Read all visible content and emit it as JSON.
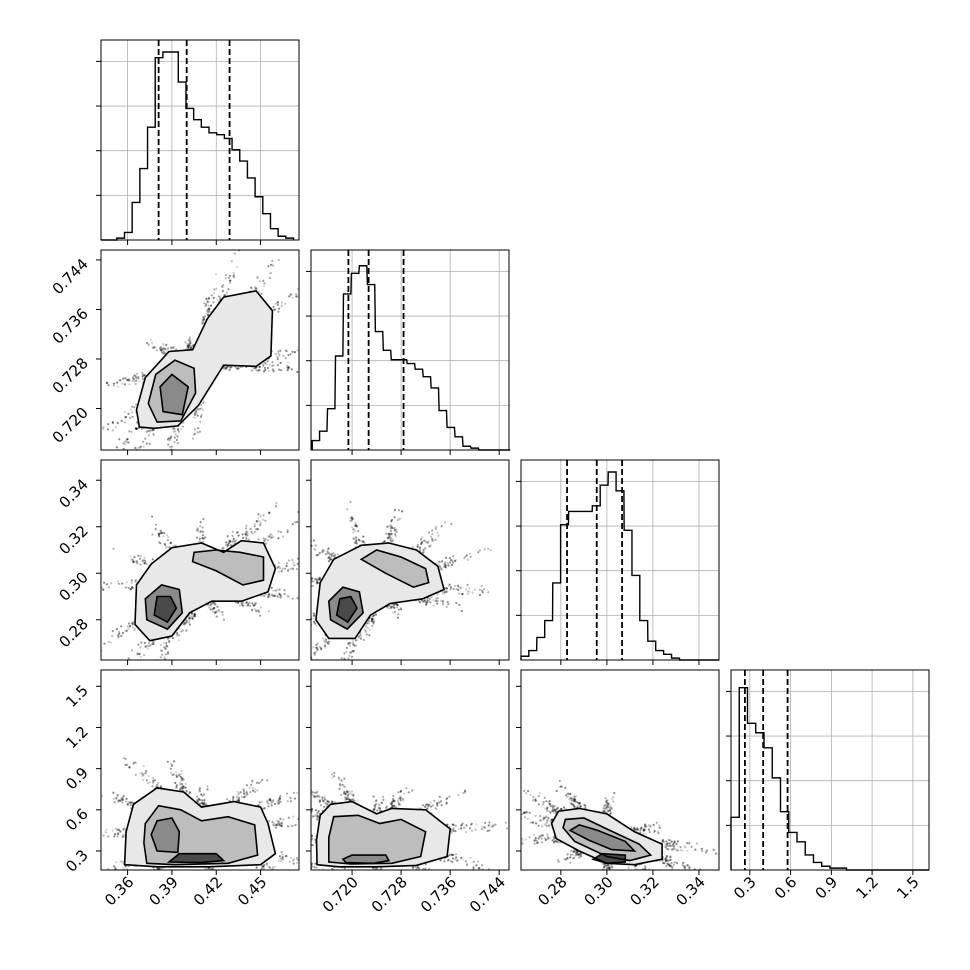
{
  "chart_data": {
    "type": "corner",
    "params": [
      {
        "ticks": [
          0.36,
          0.39,
          0.42,
          0.45
        ],
        "tick_labels": [
          "0.36",
          "0.39",
          "0.42",
          "0.45"
        ],
        "range": [
          0.342,
          0.476
        ],
        "quantiles": [
          0.381,
          0.4,
          0.429
        ],
        "hist_x": [
          0.3449,
          0.3501,
          0.3553,
          0.3605,
          0.3657,
          0.3709,
          0.3761,
          0.3813,
          0.3865,
          0.3917,
          0.3969,
          0.4021,
          0.4073,
          0.4125,
          0.4177,
          0.4229,
          0.4281,
          0.4333,
          0.4385,
          0.4437,
          0.4489,
          0.4541,
          0.4593,
          0.4645,
          0.4697
        ],
        "hist_y": [
          0.0,
          0.0,
          0.01,
          0.04,
          0.2,
          0.38,
          0.6,
          0.97,
          1.0,
          1.0,
          0.84,
          0.7,
          0.64,
          0.6,
          0.57,
          0.56,
          0.54,
          0.48,
          0.42,
          0.33,
          0.23,
          0.14,
          0.06,
          0.02,
          0.01
        ]
      },
      {
        "ticks": [
          0.72,
          0.728,
          0.736,
          0.744
        ],
        "tick_labels": [
          "0.720",
          "0.728",
          "0.736",
          "0.744"
        ],
        "range": [
          0.7133,
          0.7456
        ],
        "quantiles": [
          0.7194,
          0.7227,
          0.7284
        ],
        "hist_x": [
          0.7141,
          0.7153,
          0.7166,
          0.7179,
          0.7192,
          0.7205,
          0.7218,
          0.7231,
          0.7244,
          0.7257,
          0.727,
          0.7283,
          0.7296,
          0.7309,
          0.7322,
          0.7335,
          0.7348,
          0.7361,
          0.7374,
          0.7387,
          0.74,
          0.7413,
          0.7426,
          0.7439,
          0.7452
        ],
        "hist_y": [
          0.05,
          0.1,
          0.22,
          0.5,
          0.83,
          0.94,
          0.98,
          0.88,
          0.63,
          0.53,
          0.48,
          0.48,
          0.46,
          0.43,
          0.39,
          0.33,
          0.21,
          0.12,
          0.07,
          0.02,
          0.01,
          0.0,
          0.0,
          0.0,
          0.0
        ]
      },
      {
        "ticks": [
          0.28,
          0.3,
          0.32,
          0.34
        ],
        "tick_labels": [
          "0.28",
          "0.30",
          "0.32",
          "0.34"
        ],
        "range": [
          0.2627,
          0.3487
        ],
        "quantiles": [
          0.2827,
          0.2956,
          0.3066
        ],
        "hist_x": [
          0.2644,
          0.2678,
          0.2713,
          0.2747,
          0.2782,
          0.2816,
          0.2851,
          0.2885,
          0.2919,
          0.2954,
          0.2988,
          0.3023,
          0.3057,
          0.3092,
          0.3126,
          0.316,
          0.3195,
          0.3229,
          0.3264,
          0.3298,
          0.3333,
          0.3367,
          0.3401,
          0.3436,
          0.347
        ],
        "hist_y": [
          0.02,
          0.05,
          0.12,
          0.21,
          0.41,
          0.72,
          0.79,
          0.79,
          0.79,
          0.82,
          0.93,
          1.0,
          0.9,
          0.69,
          0.45,
          0.21,
          0.1,
          0.05,
          0.03,
          0.01,
          0.0,
          0.0,
          0.0,
          0.0,
          0.0
        ]
      },
      {
        "ticks": [
          0.3,
          0.6,
          0.9,
          1.2,
          1.5
        ],
        "tick_labels": [
          "0.3",
          "0.6",
          "0.9",
          "1.2",
          "1.5"
        ],
        "range": [
          0.1614,
          1.6188
        ],
        "quantiles": [
          0.2637,
          0.3981,
          0.5779
        ],
        "hist_x": [
          0.1917,
          0.2524,
          0.3131,
          0.3739,
          0.4346,
          0.4953,
          0.5561,
          0.6168,
          0.6775,
          0.7382,
          0.799,
          0.8597,
          0.9204,
          0.9811,
          1.0419,
          1.1026,
          1.1633,
          1.2241,
          1.2848,
          1.3455,
          1.4062,
          1.467,
          1.5277,
          1.5884
        ],
        "hist_y": [
          0.28,
          0.97,
          0.78,
          0.73,
          0.65,
          0.49,
          0.31,
          0.2,
          0.15,
          0.08,
          0.04,
          0.02,
          0.01,
          0.01,
          0.0,
          0.0,
          0.0,
          0.0,
          0.0,
          0.0,
          0.0,
          0.0,
          0.0,
          0.0
        ]
      }
    ],
    "density_panels": [
      {
        "x": 0,
        "y": 1,
        "contours": [
          [
            [
              0.378,
              0.7168
            ],
            [
              0.394,
              0.7172
            ],
            [
              0.408,
              0.7205
            ],
            [
              0.425,
              0.727
            ],
            [
              0.447,
              0.7268
            ],
            [
              0.457,
              0.7285
            ],
            [
              0.458,
              0.7358
            ],
            [
              0.447,
              0.739
            ],
            [
              0.425,
              0.738
            ],
            [
              0.414,
              0.7345
            ],
            [
              0.404,
              0.7295
            ],
            [
              0.388,
              0.7292
            ],
            [
              0.372,
              0.725
            ],
            [
              0.366,
              0.7198
            ],
            [
              0.368,
              0.717
            ]
          ],
          [
            [
              0.38,
              0.7178
            ],
            [
              0.396,
              0.718
            ],
            [
              0.406,
              0.7225
            ],
            [
              0.405,
              0.7265
            ],
            [
              0.392,
              0.7278
            ],
            [
              0.379,
              0.7255
            ],
            [
              0.374,
              0.7208
            ]
          ],
          [
            [
              0.384,
              0.7195
            ],
            [
              0.397,
              0.719
            ],
            [
              0.401,
              0.7235
            ],
            [
              0.39,
              0.7255
            ],
            [
              0.382,
              0.7235
            ]
          ]
        ]
      },
      {
        "x": 0,
        "y": 2,
        "contours": [
          [
            [
              0.365,
              0.278
            ],
            [
              0.375,
              0.271
            ],
            [
              0.39,
              0.273
            ],
            [
              0.402,
              0.283
            ],
            [
              0.417,
              0.288
            ],
            [
              0.437,
              0.288
            ],
            [
              0.455,
              0.292
            ],
            [
              0.46,
              0.302
            ],
            [
              0.452,
              0.313
            ],
            [
              0.437,
              0.314
            ],
            [
              0.425,
              0.309
            ],
            [
              0.41,
              0.313
            ],
            [
              0.39,
              0.311
            ],
            [
              0.376,
              0.304
            ],
            [
              0.366,
              0.295
            ]
          ],
          [
            [
              0.404,
              0.305
            ],
            [
              0.42,
              0.301
            ],
            [
              0.438,
              0.295
            ],
            [
              0.452,
              0.297
            ],
            [
              0.452,
              0.307
            ],
            [
              0.436,
              0.309
            ],
            [
              0.42,
              0.31
            ],
            [
              0.405,
              0.309
            ]
          ],
          [
            [
              0.373,
              0.28
            ],
            [
              0.387,
              0.276
            ],
            [
              0.397,
              0.283
            ],
            [
              0.395,
              0.293
            ],
            [
              0.383,
              0.295
            ],
            [
              0.372,
              0.289
            ]
          ],
          [
            [
              0.378,
              0.282
            ],
            [
              0.387,
              0.279
            ],
            [
              0.393,
              0.285
            ],
            [
              0.389,
              0.29
            ],
            [
              0.38,
              0.29
            ]
          ]
        ]
      },
      {
        "x": 1,
        "y": 2,
        "contours": [
          [
            [
              0.7141,
              0.28
            ],
            [
              0.7162,
              0.272
            ],
            [
              0.7205,
              0.272
            ],
            [
              0.723,
              0.282
            ],
            [
              0.7262,
              0.287
            ],
            [
              0.7315,
              0.289
            ],
            [
              0.735,
              0.293
            ],
            [
              0.734,
              0.303
            ],
            [
              0.7305,
              0.31
            ],
            [
              0.726,
              0.313
            ],
            [
              0.7215,
              0.312
            ],
            [
              0.717,
              0.306
            ],
            [
              0.7148,
              0.296
            ]
          ],
          [
            [
              0.7215,
              0.306
            ],
            [
              0.7255,
              0.3
            ],
            [
              0.73,
              0.294
            ],
            [
              0.7325,
              0.296
            ],
            [
              0.732,
              0.302
            ],
            [
              0.728,
              0.307
            ],
            [
              0.724,
              0.31
            ]
          ],
          [
            [
              0.7165,
              0.28
            ],
            [
              0.7192,
              0.276
            ],
            [
              0.7218,
              0.283
            ],
            [
              0.7212,
              0.292
            ],
            [
              0.7185,
              0.294
            ],
            [
              0.7162,
              0.288
            ]
          ],
          [
            [
              0.7175,
              0.282
            ],
            [
              0.7193,
              0.279
            ],
            [
              0.7208,
              0.285
            ],
            [
              0.7198,
              0.29
            ],
            [
              0.718,
              0.289
            ]
          ]
        ]
      },
      {
        "x": 0,
        "y": 3,
        "contours": [
          [
            [
              0.358,
              0.2
            ],
            [
              0.38,
              0.185
            ],
            [
              0.415,
              0.185
            ],
            [
              0.45,
              0.2
            ],
            [
              0.46,
              0.28
            ],
            [
              0.455,
              0.5
            ],
            [
              0.45,
              0.62
            ],
            [
              0.432,
              0.66
            ],
            [
              0.41,
              0.62
            ],
            [
              0.398,
              0.73
            ],
            [
              0.38,
              0.76
            ],
            [
              0.364,
              0.64
            ],
            [
              0.359,
              0.44
            ]
          ],
          [
            [
              0.373,
              0.21
            ],
            [
              0.392,
              0.2
            ],
            [
              0.428,
              0.21
            ],
            [
              0.448,
              0.27
            ],
            [
              0.446,
              0.49
            ],
            [
              0.428,
              0.55
            ],
            [
              0.41,
              0.52
            ],
            [
              0.396,
              0.6
            ],
            [
              0.381,
              0.63
            ],
            [
              0.372,
              0.5
            ],
            [
              0.371,
              0.36
            ]
          ],
          [
            [
              0.38,
              0.3
            ],
            [
              0.394,
              0.29
            ],
            [
              0.395,
              0.44
            ],
            [
              0.39,
              0.54
            ],
            [
              0.38,
              0.52
            ],
            [
              0.376,
              0.42
            ]
          ],
          [
            [
              0.388,
              0.22
            ],
            [
              0.41,
              0.215
            ],
            [
              0.425,
              0.23
            ],
            [
              0.42,
              0.28
            ],
            [
              0.395,
              0.28
            ]
          ]
        ]
      },
      {
        "x": 1,
        "y": 3,
        "contours": [
          [
            [
              0.7143,
              0.2
            ],
            [
              0.7178,
              0.185
            ],
            [
              0.724,
              0.185
            ],
            [
              0.7305,
              0.195
            ],
            [
              0.7355,
              0.26
            ],
            [
              0.736,
              0.46
            ],
            [
              0.732,
              0.6
            ],
            [
              0.7265,
              0.61
            ],
            [
              0.724,
              0.57
            ],
            [
              0.72,
              0.66
            ],
            [
              0.7165,
              0.64
            ],
            [
              0.7148,
              0.56
            ],
            [
              0.7142,
              0.38
            ]
          ],
          [
            [
              0.7162,
              0.22
            ],
            [
              0.7198,
              0.205
            ],
            [
              0.7265,
              0.21
            ],
            [
              0.7312,
              0.26
            ],
            [
              0.732,
              0.44
            ],
            [
              0.728,
              0.53
            ],
            [
              0.7245,
              0.5
            ],
            [
              0.721,
              0.56
            ],
            [
              0.717,
              0.55
            ],
            [
              0.7162,
              0.4
            ]
          ],
          [
            [
              0.719,
              0.215
            ],
            [
              0.7235,
              0.21
            ],
            [
              0.726,
              0.23
            ],
            [
              0.7255,
              0.27
            ],
            [
              0.72,
              0.27
            ],
            [
              0.7185,
              0.24
            ]
          ]
        ]
      },
      {
        "x": 2,
        "y": 3,
        "contours": [
          [
            [
              0.276,
              0.5
            ],
            [
              0.278,
              0.39
            ],
            [
              0.288,
              0.3
            ],
            [
              0.3,
              0.21
            ],
            [
              0.312,
              0.2
            ],
            [
              0.324,
              0.24
            ],
            [
              0.324,
              0.35
            ],
            [
              0.312,
              0.44
            ],
            [
              0.3,
              0.57
            ],
            [
              0.288,
              0.61
            ],
            [
              0.279,
              0.59
            ]
          ],
          [
            [
              0.281,
              0.47
            ],
            [
              0.286,
              0.37
            ],
            [
              0.3,
              0.26
            ],
            [
              0.31,
              0.23
            ],
            [
              0.319,
              0.27
            ],
            [
              0.314,
              0.35
            ],
            [
              0.3,
              0.46
            ],
            [
              0.29,
              0.54
            ],
            [
              0.282,
              0.53
            ]
          ],
          [
            [
              0.284,
              0.45
            ],
            [
              0.292,
              0.38
            ],
            [
              0.302,
              0.31
            ],
            [
              0.312,
              0.3
            ],
            [
              0.308,
              0.37
            ],
            [
              0.296,
              0.45
            ],
            [
              0.288,
              0.49
            ]
          ],
          [
            [
              0.294,
              0.24
            ],
            [
              0.3,
              0.21
            ],
            [
              0.308,
              0.22
            ],
            [
              0.308,
              0.27
            ],
            [
              0.298,
              0.28
            ]
          ]
        ]
      }
    ]
  }
}
